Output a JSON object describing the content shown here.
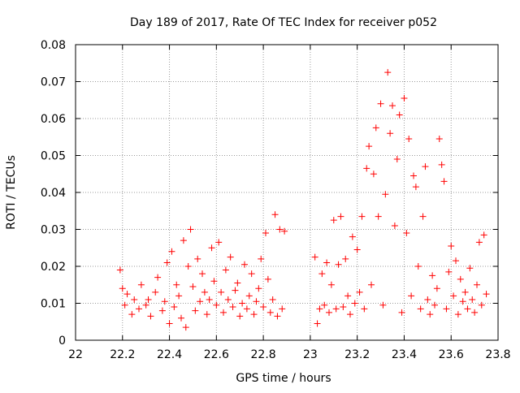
{
  "chart_data": {
    "type": "scatter",
    "title": "Day 189 of 2017, Rate Of TEC Index for receiver p052",
    "xlabel": "GPS time / hours",
    "ylabel": "ROTI / TECUs",
    "xlim": [
      22,
      23.8
    ],
    "ylim": [
      0,
      0.08
    ],
    "x_ticks": [
      22,
      22.2,
      22.4,
      22.6,
      22.8,
      23,
      23.2,
      23.4,
      23.6,
      23.8
    ],
    "x_tick_labels": [
      "22",
      "22.2",
      "22.4",
      "22.6",
      "22.8",
      "23",
      "23.2",
      "23.4",
      "23.6",
      "23.8"
    ],
    "y_ticks": [
      0,
      0.01,
      0.02,
      0.03,
      0.04,
      0.05,
      0.06,
      0.07,
      0.08
    ],
    "y_tick_labels": [
      "0",
      "0.01",
      "0.02",
      "0.03",
      "0.04",
      "0.05",
      "0.06",
      "0.07",
      "0.08"
    ],
    "grid": true,
    "marker": "plus",
    "series": [
      {
        "name": "ROTI",
        "color": "#ff0000",
        "points": [
          [
            22.19,
            0.019
          ],
          [
            22.2,
            0.014
          ],
          [
            22.21,
            0.0095
          ],
          [
            22.22,
            0.0125
          ],
          [
            22.24,
            0.007
          ],
          [
            22.25,
            0.011
          ],
          [
            22.27,
            0.0085
          ],
          [
            22.28,
            0.015
          ],
          [
            22.3,
            0.0095
          ],
          [
            22.31,
            0.011
          ],
          [
            22.32,
            0.0065
          ],
          [
            22.34,
            0.013
          ],
          [
            22.35,
            0.017
          ],
          [
            22.37,
            0.008
          ],
          [
            22.38,
            0.0105
          ],
          [
            22.39,
            0.021
          ],
          [
            22.4,
            0.0045
          ],
          [
            22.41,
            0.024
          ],
          [
            22.42,
            0.009
          ],
          [
            22.43,
            0.015
          ],
          [
            22.44,
            0.012
          ],
          [
            22.45,
            0.006
          ],
          [
            22.46,
            0.027
          ],
          [
            22.47,
            0.0035
          ],
          [
            22.48,
            0.02
          ],
          [
            22.49,
            0.03
          ],
          [
            22.5,
            0.0145
          ],
          [
            22.51,
            0.008
          ],
          [
            22.52,
            0.022
          ],
          [
            22.53,
            0.0105
          ],
          [
            22.54,
            0.018
          ],
          [
            22.55,
            0.013
          ],
          [
            22.56,
            0.007
          ],
          [
            22.57,
            0.011
          ],
          [
            22.58,
            0.025
          ],
          [
            22.59,
            0.016
          ],
          [
            22.6,
            0.0095
          ],
          [
            22.61,
            0.0265
          ],
          [
            22.62,
            0.013
          ],
          [
            22.63,
            0.0075
          ],
          [
            22.64,
            0.019
          ],
          [
            22.65,
            0.011
          ],
          [
            22.66,
            0.0225
          ],
          [
            22.67,
            0.009
          ],
          [
            22.68,
            0.0135
          ],
          [
            22.69,
            0.0155
          ],
          [
            22.7,
            0.0065
          ],
          [
            22.71,
            0.01
          ],
          [
            22.72,
            0.0205
          ],
          [
            22.73,
            0.0085
          ],
          [
            22.74,
            0.012
          ],
          [
            22.75,
            0.018
          ],
          [
            22.76,
            0.007
          ],
          [
            22.77,
            0.0105
          ],
          [
            22.78,
            0.014
          ],
          [
            22.79,
            0.022
          ],
          [
            22.8,
            0.009
          ],
          [
            22.81,
            0.029
          ],
          [
            22.82,
            0.0165
          ],
          [
            22.83,
            0.0075
          ],
          [
            22.84,
            0.011
          ],
          [
            22.85,
            0.034
          ],
          [
            22.86,
            0.0065
          ],
          [
            22.87,
            0.03
          ],
          [
            22.88,
            0.0085
          ],
          [
            22.89,
            0.0295
          ],
          [
            23.02,
            0.0225
          ],
          [
            23.03,
            0.0045
          ],
          [
            23.04,
            0.0085
          ],
          [
            23.05,
            0.018
          ],
          [
            23.06,
            0.0095
          ],
          [
            23.07,
            0.021
          ],
          [
            23.08,
            0.0075
          ],
          [
            23.09,
            0.015
          ],
          [
            23.1,
            0.0325
          ],
          [
            23.11,
            0.0085
          ],
          [
            23.12,
            0.0205
          ],
          [
            23.13,
            0.0335
          ],
          [
            23.14,
            0.009
          ],
          [
            23.15,
            0.022
          ],
          [
            23.16,
            0.012
          ],
          [
            23.17,
            0.007
          ],
          [
            23.18,
            0.028
          ],
          [
            23.19,
            0.01
          ],
          [
            23.2,
            0.0245
          ],
          [
            23.21,
            0.013
          ],
          [
            23.22,
            0.0335
          ],
          [
            23.23,
            0.0085
          ],
          [
            23.24,
            0.0465
          ],
          [
            23.25,
            0.0525
          ],
          [
            23.26,
            0.015
          ],
          [
            23.27,
            0.045
          ],
          [
            23.28,
            0.0575
          ],
          [
            23.29,
            0.0335
          ],
          [
            23.3,
            0.064
          ],
          [
            23.31,
            0.0095
          ],
          [
            23.32,
            0.0395
          ],
          [
            23.33,
            0.0725
          ],
          [
            23.34,
            0.056
          ],
          [
            23.35,
            0.0635
          ],
          [
            23.36,
            0.031
          ],
          [
            23.37,
            0.049
          ],
          [
            23.38,
            0.061
          ],
          [
            23.39,
            0.0075
          ],
          [
            23.4,
            0.0655
          ],
          [
            23.41,
            0.029
          ],
          [
            23.42,
            0.0545
          ],
          [
            23.43,
            0.012
          ],
          [
            23.44,
            0.0445
          ],
          [
            23.45,
            0.0415
          ],
          [
            23.46,
            0.02
          ],
          [
            23.47,
            0.0085
          ],
          [
            23.48,
            0.0335
          ],
          [
            23.49,
            0.047
          ],
          [
            23.5,
            0.011
          ],
          [
            23.51,
            0.007
          ],
          [
            23.52,
            0.0175
          ],
          [
            23.53,
            0.0095
          ],
          [
            23.54,
            0.014
          ],
          [
            23.55,
            0.0545
          ],
          [
            23.56,
            0.0475
          ],
          [
            23.57,
            0.043
          ],
          [
            23.58,
            0.0085
          ],
          [
            23.59,
            0.0185
          ],
          [
            23.6,
            0.0255
          ],
          [
            23.61,
            0.012
          ],
          [
            23.62,
            0.0215
          ],
          [
            23.63,
            0.007
          ],
          [
            23.64,
            0.0165
          ],
          [
            23.65,
            0.0105
          ],
          [
            23.66,
            0.013
          ],
          [
            23.67,
            0.0085
          ],
          [
            23.68,
            0.0195
          ],
          [
            23.69,
            0.011
          ],
          [
            23.7,
            0.0075
          ],
          [
            23.71,
            0.015
          ],
          [
            23.72,
            0.0265
          ],
          [
            23.73,
            0.0095
          ],
          [
            23.74,
            0.0285
          ],
          [
            23.75,
            0.0125
          ]
        ]
      }
    ]
  }
}
